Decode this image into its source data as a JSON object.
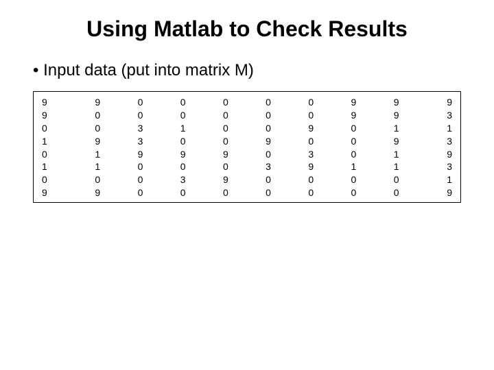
{
  "title": "Using Matlab to Check Results",
  "bullet": "Input data (put into matrix M)",
  "matrix": {
    "type": "table",
    "num_cols": 10,
    "font_size": 14,
    "border_color": "#000000",
    "background_color": "#ffffff",
    "text_color": "#000000",
    "rows": [
      [
        9,
        9,
        0,
        0,
        0,
        0,
        0,
        9,
        9,
        9
      ],
      [
        9,
        0,
        0,
        0,
        0,
        0,
        0,
        9,
        9,
        3
      ],
      [
        0,
        0,
        3,
        1,
        0,
        0,
        9,
        0,
        1,
        1
      ],
      [
        1,
        9,
        3,
        0,
        0,
        9,
        0,
        0,
        9,
        3
      ],
      [
        0,
        1,
        9,
        9,
        9,
        0,
        3,
        0,
        1,
        9
      ],
      [
        1,
        1,
        0,
        0,
        0,
        3,
        9,
        1,
        1,
        3
      ],
      [
        0,
        0,
        0,
        3,
        9,
        0,
        0,
        0,
        0,
        1
      ],
      [
        9,
        9,
        0,
        0,
        0,
        0,
        0,
        0,
        0,
        9
      ]
    ]
  }
}
